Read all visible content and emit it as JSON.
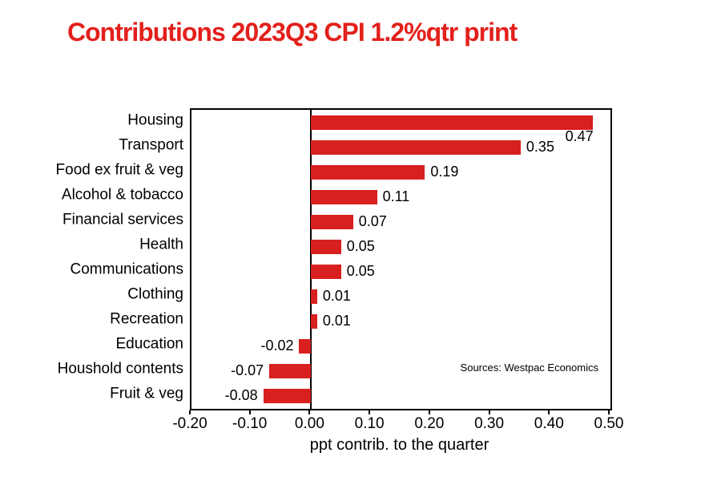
{
  "chart_data": {
    "type": "bar",
    "orientation": "horizontal",
    "title": "Contributions 2023Q3 CPI 1.2%qtr print",
    "xlabel": "ppt contrib. to the quarter",
    "categories": [
      "Housing",
      "Transport",
      "Food ex fruit & veg",
      "Alcohol & tobacco",
      "Financial services",
      "Health",
      "Communications",
      "Clothing",
      "Recreation",
      "Education",
      "Houshold contents",
      "Fruit & veg"
    ],
    "values": [
      0.47,
      0.35,
      0.19,
      0.11,
      0.07,
      0.05,
      0.05,
      0.01,
      0.01,
      -0.02,
      -0.07,
      -0.08
    ],
    "value_labels": [
      "0.47",
      "0.35",
      "0.19",
      "0.11",
      "0.07",
      "0.05",
      "0.05",
      "0.01",
      "0.01",
      "-0.02",
      "-0.07",
      "-0.08"
    ],
    "xlim": [
      -0.2,
      0.5
    ],
    "xticks": [
      -0.2,
      -0.1,
      0.0,
      0.1,
      0.2,
      0.3,
      0.4,
      0.5
    ],
    "xtick_labels": [
      "-0.20",
      "-0.10",
      "0.00",
      "0.10",
      "0.20",
      "0.30",
      "0.40",
      "0.50"
    ],
    "source_note": "Sources: Westpac Economics",
    "grid": false,
    "legend": "none",
    "label_overrides": {
      "0": {
        "dx": -41,
        "dy": 18
      }
    },
    "colors": {
      "bar": "#d7201f",
      "title": "#e3201b",
      "axis": "#000000",
      "text": "#000000"
    }
  }
}
